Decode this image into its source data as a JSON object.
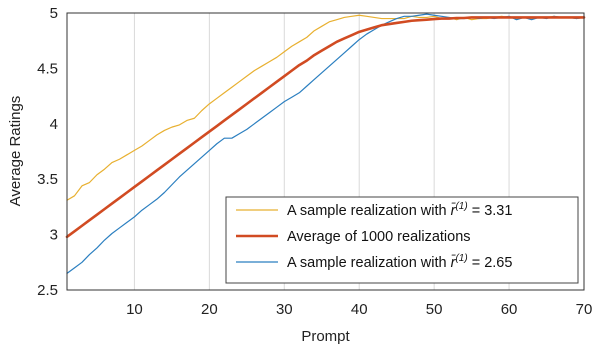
{
  "chart_data": {
    "type": "line",
    "xlabel": "Prompt",
    "ylabel": "Average Ratings",
    "xlim": [
      1,
      70
    ],
    "ylim": [
      2.5,
      5
    ],
    "xticks": [
      10,
      20,
      30,
      40,
      50,
      60,
      70
    ],
    "yticks": [
      2.5,
      3,
      3.5,
      4,
      4.5,
      5
    ],
    "ytick_labels": [
      "2.5",
      "3",
      "3.5",
      "4",
      "4.5",
      "5"
    ],
    "grid": "vertical",
    "legend_position": "bottom-right",
    "legend": {
      "prefix": "A sample realization with ",
      "rbar": "r̄",
      "sup": "(1)",
      "eq": " = "
    },
    "series": [
      {
        "name": "A sample realization with r̄(1) = 3.31",
        "value_label": "3.31",
        "color": "#E8B030",
        "stroke_width": 1.2,
        "x": [
          1,
          2,
          3,
          4,
          5,
          6,
          7,
          8,
          9,
          10,
          11,
          12,
          13,
          14,
          15,
          16,
          17,
          18,
          19,
          20,
          21,
          22,
          23,
          24,
          25,
          26,
          27,
          28,
          29,
          30,
          31,
          32,
          33,
          34,
          35,
          36,
          37,
          38,
          39,
          40,
          41,
          42,
          43,
          44,
          45,
          46,
          47,
          48,
          49,
          50,
          51,
          52,
          53,
          54,
          55,
          56,
          57,
          58,
          59,
          60,
          61,
          62,
          63,
          64,
          65,
          66,
          67,
          68,
          69,
          70
        ],
        "y": [
          3.31,
          3.35,
          3.44,
          3.47,
          3.54,
          3.59,
          3.65,
          3.68,
          3.72,
          3.76,
          3.8,
          3.85,
          3.9,
          3.94,
          3.97,
          3.99,
          4.03,
          4.05,
          4.12,
          4.18,
          4.23,
          4.28,
          4.33,
          4.38,
          4.43,
          4.48,
          4.52,
          4.56,
          4.6,
          4.65,
          4.7,
          4.74,
          4.78,
          4.84,
          4.88,
          4.92,
          4.94,
          4.96,
          4.97,
          4.98,
          4.97,
          4.96,
          4.95,
          4.95,
          4.95,
          4.95,
          4.97,
          4.96,
          4.96,
          4.97,
          4.95,
          4.96,
          4.94,
          4.96,
          4.94,
          4.95,
          4.95,
          4.96,
          4.97,
          4.96,
          4.95,
          4.96,
          4.95,
          4.96,
          4.96,
          4.97,
          4.96,
          4.96,
          4.95,
          4.96
        ]
      },
      {
        "name": "Average of 1000 realizations",
        "color": "#D14B22",
        "stroke_width": 2.6,
        "x": [
          1,
          2,
          3,
          4,
          5,
          6,
          7,
          8,
          9,
          10,
          11,
          12,
          13,
          14,
          15,
          16,
          17,
          18,
          19,
          20,
          21,
          22,
          23,
          24,
          25,
          26,
          27,
          28,
          29,
          30,
          31,
          32,
          33,
          34,
          35,
          36,
          37,
          38,
          39,
          40,
          41,
          42,
          43,
          44,
          45,
          46,
          47,
          48,
          49,
          50,
          51,
          52,
          53,
          54,
          55,
          56,
          57,
          58,
          59,
          60,
          61,
          62,
          63,
          64,
          65,
          66,
          67,
          68,
          69,
          70
        ],
        "y": [
          2.98,
          3.03,
          3.08,
          3.13,
          3.18,
          3.23,
          3.28,
          3.33,
          3.38,
          3.43,
          3.48,
          3.53,
          3.58,
          3.63,
          3.68,
          3.73,
          3.78,
          3.83,
          3.88,
          3.93,
          3.98,
          4.03,
          4.08,
          4.13,
          4.18,
          4.23,
          4.28,
          4.33,
          4.38,
          4.43,
          4.48,
          4.53,
          4.57,
          4.62,
          4.66,
          4.7,
          4.74,
          4.77,
          4.8,
          4.83,
          4.85,
          4.87,
          4.89,
          4.9,
          4.91,
          4.92,
          4.93,
          4.935,
          4.94,
          4.945,
          4.95,
          4.95,
          4.955,
          4.955,
          4.96,
          4.96,
          4.96,
          4.96,
          4.96,
          4.96,
          4.96,
          4.96,
          4.96,
          4.96,
          4.96,
          4.96,
          4.96,
          4.96,
          4.96,
          4.96
        ]
      },
      {
        "name": "A sample realization with r̄(1) = 2.65",
        "value_label": "2.65",
        "color": "#2B7FC0",
        "stroke_width": 1.2,
        "x": [
          1,
          2,
          3,
          4,
          5,
          6,
          7,
          8,
          9,
          10,
          11,
          12,
          13,
          14,
          15,
          16,
          17,
          18,
          19,
          20,
          21,
          22,
          23,
          24,
          25,
          26,
          27,
          28,
          29,
          30,
          31,
          32,
          33,
          34,
          35,
          36,
          37,
          38,
          39,
          40,
          41,
          42,
          43,
          44,
          45,
          46,
          47,
          48,
          49,
          50,
          51,
          52,
          53,
          54,
          55,
          56,
          57,
          58,
          59,
          60,
          61,
          62,
          63,
          64,
          65,
          66,
          67,
          68,
          69,
          70
        ],
        "y": [
          2.65,
          2.7,
          2.75,
          2.82,
          2.88,
          2.95,
          3.01,
          3.06,
          3.11,
          3.16,
          3.22,
          3.27,
          3.32,
          3.38,
          3.45,
          3.52,
          3.58,
          3.64,
          3.7,
          3.76,
          3.82,
          3.87,
          3.87,
          3.91,
          3.95,
          4.0,
          4.05,
          4.1,
          4.15,
          4.2,
          4.24,
          4.28,
          4.34,
          4.4,
          4.46,
          4.52,
          4.58,
          4.64,
          4.7,
          4.76,
          4.81,
          4.85,
          4.89,
          4.92,
          4.95,
          4.97,
          4.97,
          4.98,
          4.99,
          4.98,
          4.97,
          4.96,
          4.95,
          4.95,
          4.96,
          4.95,
          4.96,
          4.95,
          4.96,
          4.97,
          4.94,
          4.96,
          4.94,
          4.96,
          4.95,
          4.97,
          4.96,
          4.96,
          4.95,
          4.96
        ]
      }
    ]
  }
}
